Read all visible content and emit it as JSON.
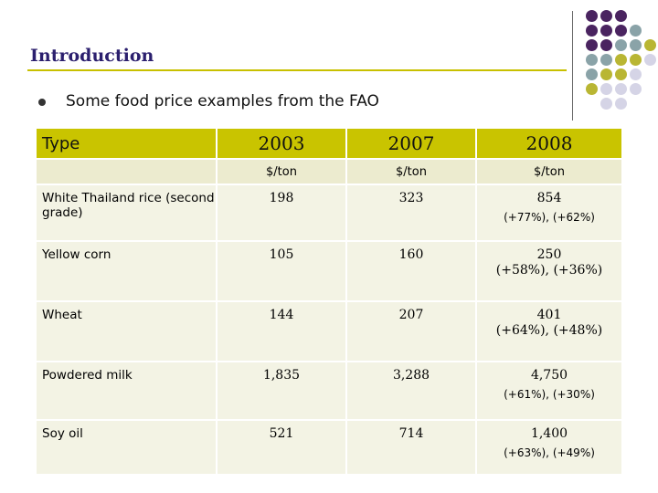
{
  "slide": {
    "title": "Introduction",
    "bullet": "Some food price examples from the FAO",
    "colors": {
      "title": "#2b1f6e",
      "accent": "#c9c400",
      "purple": "#4a2460",
      "teal": "#8aa3a8",
      "olive": "#b9b633",
      "lavender": "#d5d4e6"
    }
  },
  "table": {
    "headers": [
      "Type",
      "2003",
      "2007",
      "2008"
    ],
    "units": [
      "",
      "$/ton",
      "$/ton",
      "$/ton"
    ],
    "rows": [
      {
        "type": "White Thailand rice (second grade)",
        "y2003": "198",
        "y2007": "323",
        "y2008": "854",
        "change": "(+77%), (+62%)"
      },
      {
        "type": "Yellow corn",
        "y2003": "105",
        "y2007": "160",
        "y2008": "250",
        "change": "(+58%), (+36%)"
      },
      {
        "type": "Wheat",
        "y2003": "144",
        "y2007": "207",
        "y2008": "401",
        "change": "(+64%), (+48%)"
      },
      {
        "type": "Powdered milk",
        "y2003": "1,835",
        "y2007": "3,288",
        "y2008": "4,750",
        "change": "(+61%), (+30%)"
      },
      {
        "type": "Soy oil",
        "y2003": "521",
        "y2007": "714",
        "y2008": "1,400",
        "change": "(+63%), (+49%)"
      }
    ]
  }
}
